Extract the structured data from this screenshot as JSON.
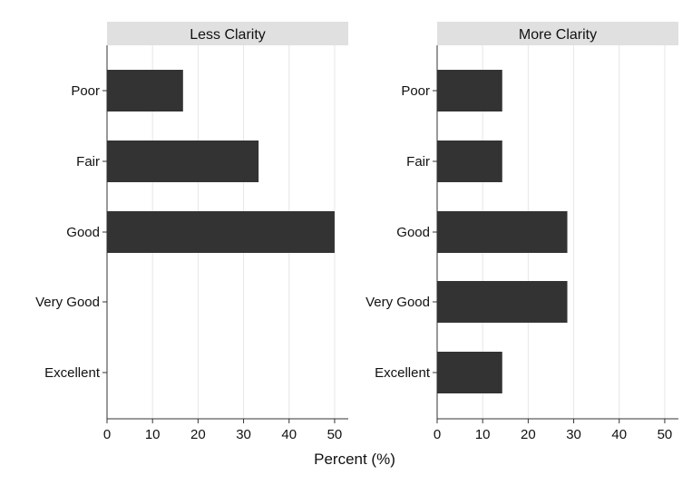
{
  "chart_data": {
    "type": "bar",
    "orientation": "horizontal",
    "categories": [
      "Poor",
      "Fair",
      "Good",
      "Very Good",
      "Excellent"
    ],
    "xlabel": "Percent (%)",
    "xlim": [
      0,
      53
    ],
    "xticks": [
      0,
      10,
      20,
      30,
      40,
      50
    ],
    "grid": true,
    "bar_color": "#333333",
    "panels": [
      {
        "title": "Less Clarity",
        "values": [
          16.7,
          33.3,
          50.0,
          0,
          0
        ]
      },
      {
        "title": "More Clarity",
        "values": [
          14.3,
          14.3,
          28.6,
          28.6,
          14.3
        ]
      }
    ]
  }
}
